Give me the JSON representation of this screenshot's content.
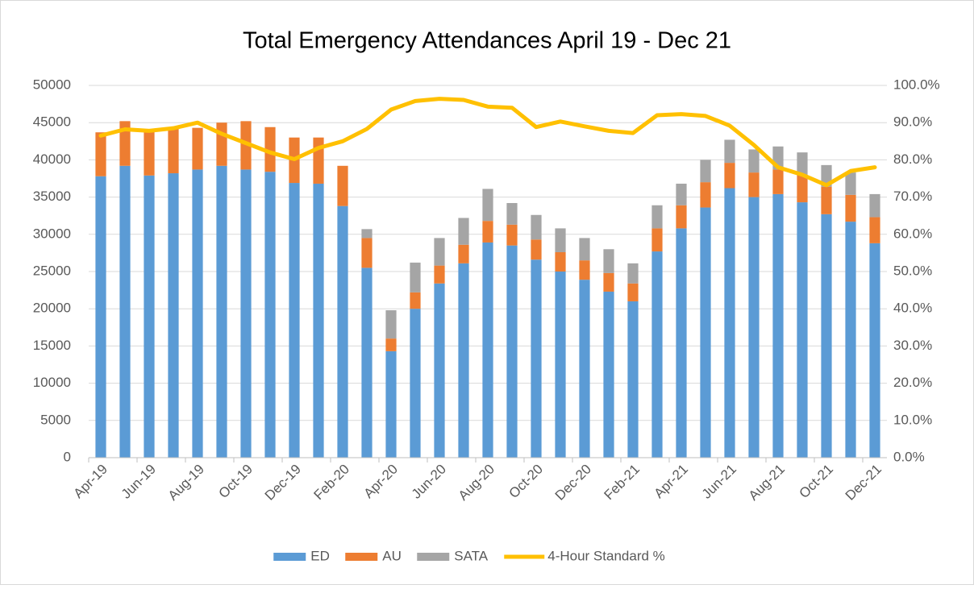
{
  "chart_data": {
    "type": "bar",
    "stacked": true,
    "title": "Total Emergency Attendances April 19 - Dec 21",
    "categories": [
      "Apr-19",
      null,
      "Jun-19",
      null,
      "Aug-19",
      null,
      "Oct-19",
      null,
      "Dec-19",
      null,
      "Feb-20",
      null,
      "Apr-20",
      null,
      "Jun-20",
      null,
      "Aug-20",
      null,
      "Oct-20",
      null,
      "Dec-20",
      null,
      "Feb-21",
      null,
      "Apr-21",
      null,
      "Jun-21",
      null,
      "Aug-21",
      null,
      "Oct-21",
      null,
      "Dec-21"
    ],
    "series": [
      {
        "name": "ED",
        "color": "#5b9bd5",
        "type": "bar",
        "values": [
          37800,
          39200,
          37900,
          38200,
          38700,
          39200,
          38700,
          38400,
          36900,
          36800,
          33800,
          25500,
          14300,
          20000,
          23400,
          26100,
          28900,
          28500,
          26600,
          25000,
          23900,
          22300,
          21000,
          27700,
          30800,
          33600,
          36200,
          35000,
          35400,
          34300,
          32700,
          31700,
          28800
        ]
      },
      {
        "name": "AU",
        "color": "#ed7d31",
        "type": "bar",
        "values": [
          5900,
          6000,
          6000,
          6000,
          5600,
          5800,
          6500,
          6000,
          6100,
          6200,
          5400,
          4000,
          1700,
          2200,
          2400,
          2500,
          2900,
          2800,
          2700,
          2600,
          2600,
          2500,
          2400,
          3100,
          3100,
          3400,
          3400,
          3300,
          3300,
          3700,
          3700,
          3600,
          3500
        ]
      },
      {
        "name": "SATA",
        "color": "#a5a5a5",
        "type": "bar",
        "values": [
          0,
          0,
          0,
          0,
          0,
          0,
          0,
          0,
          0,
          0,
          0,
          1200,
          3800,
          4000,
          3700,
          3600,
          4300,
          2900,
          3300,
          3200,
          3000,
          3200,
          2700,
          3100,
          2900,
          3000,
          3100,
          3100,
          3100,
          3000,
          2900,
          3000,
          3100
        ]
      },
      {
        "name": "4-Hour Standard %",
        "color": "#ffc000",
        "type": "line",
        "axis": "y2",
        "values": [
          86.5,
          88.2,
          87.8,
          88.5,
          90.0,
          87.0,
          84.5,
          82.0,
          80.2,
          83.2,
          85.0,
          88.3,
          93.5,
          95.8,
          96.4,
          96.1,
          94.3,
          94.0,
          88.8,
          90.3,
          89.0,
          87.8,
          87.2,
          92.0,
          92.3,
          91.8,
          89.2,
          84.0,
          78.0,
          76.0,
          73.2,
          77.0,
          78.0
        ]
      }
    ],
    "ylim": [
      0,
      50000
    ],
    "yticks": [
      0,
      5000,
      10000,
      15000,
      20000,
      25000,
      30000,
      35000,
      40000,
      45000,
      50000
    ],
    "y2lim": [
      0,
      100
    ],
    "y2ticks": [
      {
        "value": 0,
        "label": "0.0%"
      },
      {
        "value": 10,
        "label": "10.0%"
      },
      {
        "value": 20,
        "label": "20.0%"
      },
      {
        "value": 30,
        "label": "30.0%"
      },
      {
        "value": 40,
        "label": "40.0%"
      },
      {
        "value": 50,
        "label": "50.0%"
      },
      {
        "value": 60,
        "label": "60.0%"
      },
      {
        "value": 70,
        "label": "70.0%"
      },
      {
        "value": 80,
        "label": "80.0%"
      },
      {
        "value": 90,
        "label": "90.0%"
      },
      {
        "value": 100,
        "label": "100.0%"
      }
    ],
    "grid": true,
    "legend": "bottom"
  }
}
